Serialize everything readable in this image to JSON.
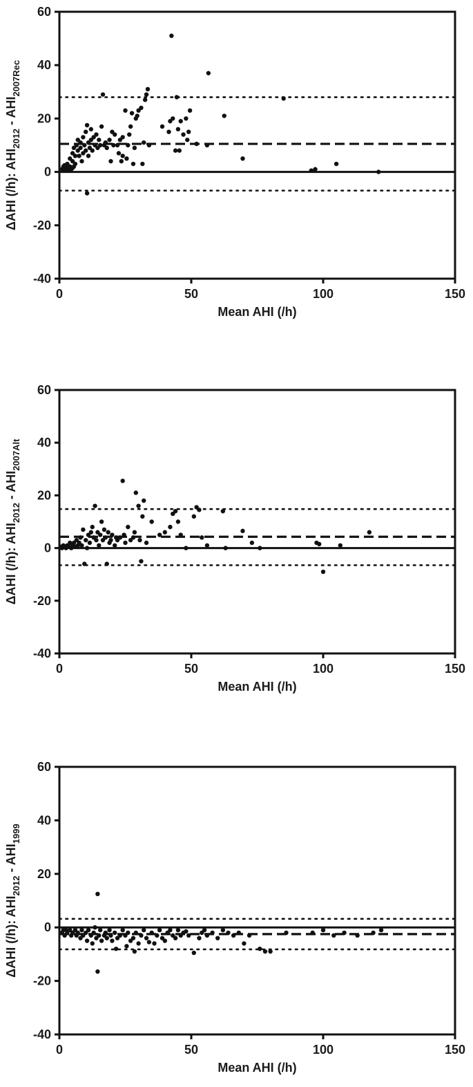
{
  "colors": {
    "ink": "#111111",
    "background": "#ffffff"
  },
  "chart_data": [
    {
      "type": "scatter",
      "title": "",
      "xlabel": "Mean AHI (/h)",
      "ylabel_parts": [
        {
          "text": "ΔAHI (/h): AHI"
        },
        {
          "text": "2012",
          "sub": true
        },
        {
          "text": " - AHI"
        },
        {
          "text": "2007Rec",
          "sub": true
        }
      ],
      "xlim": [
        0,
        150
      ],
      "ylim": [
        -40,
        60
      ],
      "xticks": [
        "0",
        "50",
        "100",
        "150"
      ],
      "yticks": [
        "-40",
        "-20",
        "0",
        "20",
        "40",
        "60"
      ],
      "grid": false,
      "reference_lines": [
        {
          "kind": "zero",
          "style": "solid",
          "y": 0
        },
        {
          "kind": "mean-bias",
          "style": "dashed",
          "y": 10.5
        },
        {
          "kind": "upper-limit",
          "style": "dotted",
          "y": 28
        },
        {
          "kind": "lower-limit",
          "style": "dotted",
          "y": -7
        }
      ],
      "points": [
        [
          1,
          1
        ],
        [
          1.5,
          2
        ],
        [
          2,
          1
        ],
        [
          2,
          2.5
        ],
        [
          2.5,
          0.5
        ],
        [
          3,
          1.5
        ],
        [
          3,
          3
        ],
        [
          3.5,
          2
        ],
        [
          4,
          0.5
        ],
        [
          4,
          2
        ],
        [
          4,
          5
        ],
        [
          4.5,
          1
        ],
        [
          5,
          1.5
        ],
        [
          5,
          4
        ],
        [
          5,
          7
        ],
        [
          5.5,
          2
        ],
        [
          5.5,
          9
        ],
        [
          6,
          3
        ],
        [
          6,
          6
        ],
        [
          6.5,
          10
        ],
        [
          7,
          8
        ],
        [
          7,
          12
        ],
        [
          7.5,
          6
        ],
        [
          8,
          9
        ],
        [
          8,
          11
        ],
        [
          8.5,
          4
        ],
        [
          9,
          7
        ],
        [
          9,
          13
        ],
        [
          9.5,
          10
        ],
        [
          10,
          15
        ],
        [
          10,
          8
        ],
        [
          10.5,
          -8
        ],
        [
          10.5,
          17.5
        ],
        [
          11,
          6
        ],
        [
          11,
          11
        ],
        [
          11.5,
          9
        ],
        [
          12,
          12
        ],
        [
          12,
          16
        ],
        [
          12.5,
          8
        ],
        [
          13,
          13
        ],
        [
          13.5,
          10
        ],
        [
          14,
          14
        ],
        [
          14.5,
          9
        ],
        [
          15,
          12
        ],
        [
          15.5,
          10
        ],
        [
          16,
          17
        ],
        [
          16.5,
          29
        ],
        [
          17,
          10
        ],
        [
          17.5,
          11
        ],
        [
          18,
          9
        ],
        [
          19,
          12
        ],
        [
          19.5,
          4
        ],
        [
          20,
          15
        ],
        [
          20.5,
          10
        ],
        [
          21,
          14
        ],
        [
          22,
          10
        ],
        [
          22.5,
          7
        ],
        [
          23,
          12
        ],
        [
          23.5,
          4
        ],
        [
          24,
          6
        ],
        [
          24,
          13
        ],
        [
          25,
          23
        ],
        [
          25.5,
          5
        ],
        [
          26,
          10
        ],
        [
          26.5,
          14
        ],
        [
          27,
          17
        ],
        [
          27.5,
          22
        ],
        [
          28,
          3
        ],
        [
          28.5,
          9
        ],
        [
          29,
          20
        ],
        [
          29.5,
          21
        ],
        [
          30,
          23
        ],
        [
          31,
          24
        ],
        [
          31.5,
          3
        ],
        [
          32,
          11
        ],
        [
          32.5,
          27
        ],
        [
          33,
          29
        ],
        [
          33.5,
          31
        ],
        [
          34,
          10
        ],
        [
          39,
          17
        ],
        [
          41.5,
          15
        ],
        [
          42,
          19
        ],
        [
          42.5,
          51
        ],
        [
          43,
          20
        ],
        [
          44,
          8
        ],
        [
          44.5,
          28
        ],
        [
          45,
          16
        ],
        [
          45.5,
          8
        ],
        [
          46,
          19
        ],
        [
          47,
          14
        ],
        [
          48,
          20
        ],
        [
          48.5,
          12
        ],
        [
          49,
          15
        ],
        [
          49.5,
          23
        ],
        [
          52,
          10.5
        ],
        [
          56,
          10
        ],
        [
          56.5,
          37
        ],
        [
          62.5,
          21
        ],
        [
          69.5,
          5
        ],
        [
          85,
          27.5
        ],
        [
          95.5,
          0.5
        ],
        [
          97,
          1
        ],
        [
          105,
          3
        ],
        [
          121,
          0
        ]
      ]
    },
    {
      "type": "scatter",
      "title": "",
      "xlabel": "Mean AHI (/h)",
      "ylabel_parts": [
        {
          "text": "ΔAHI (/h): AHI"
        },
        {
          "text": "2012",
          "sub": true
        },
        {
          "text": " - AHI"
        },
        {
          "text": "2007Alt",
          "sub": true
        }
      ],
      "xlim": [
        0,
        150
      ],
      "ylim": [
        -40,
        60
      ],
      "xticks": [
        "0",
        "50",
        "100",
        "150"
      ],
      "yticks": [
        "-40",
        "-20",
        "0",
        "20",
        "40",
        "60"
      ],
      "grid": false,
      "reference_lines": [
        {
          "kind": "zero",
          "style": "solid",
          "y": 0
        },
        {
          "kind": "mean-bias",
          "style": "dashed",
          "y": 4.3
        },
        {
          "kind": "upper-limit",
          "style": "dotted",
          "y": 14.8
        },
        {
          "kind": "lower-limit",
          "style": "dotted",
          "y": -6.5
        }
      ],
      "points": [
        [
          0.5,
          0.5
        ],
        [
          1,
          0
        ],
        [
          1.5,
          1
        ],
        [
          2,
          0.5
        ],
        [
          2.5,
          0
        ],
        [
          3,
          1
        ],
        [
          3.5,
          0.5
        ],
        [
          4,
          2
        ],
        [
          4.5,
          0
        ],
        [
          5,
          1
        ],
        [
          5.5,
          2
        ],
        [
          6,
          0.5
        ],
        [
          6.5,
          3
        ],
        [
          7,
          1
        ],
        [
          7.5,
          2
        ],
        [
          8,
          4
        ],
        [
          8.5,
          1
        ],
        [
          9,
          7
        ],
        [
          9.5,
          -6
        ],
        [
          10,
          3
        ],
        [
          10.5,
          0
        ],
        [
          11,
          5
        ],
        [
          11.5,
          2
        ],
        [
          12,
          6
        ],
        [
          12.5,
          8
        ],
        [
          13,
          4
        ],
        [
          13.5,
          16
        ],
        [
          14,
          3
        ],
        [
          14.5,
          6
        ],
        [
          15,
          1
        ],
        [
          15.5,
          5
        ],
        [
          16,
          10
        ],
        [
          16.5,
          3
        ],
        [
          17,
          7
        ],
        [
          17.5,
          4
        ],
        [
          18,
          -6
        ],
        [
          18.5,
          6
        ],
        [
          19,
          2
        ],
        [
          19.5,
          3
        ],
        [
          20,
          5
        ],
        [
          21,
          1
        ],
        [
          21.5,
          4
        ],
        [
          22,
          3
        ],
        [
          23,
          4
        ],
        [
          24,
          25.5
        ],
        [
          24.5,
          5
        ],
        [
          25,
          2
        ],
        [
          26,
          8
        ],
        [
          27,
          3
        ],
        [
          28,
          4
        ],
        [
          28.5,
          6
        ],
        [
          29,
          21
        ],
        [
          30,
          16
        ],
        [
          30.5,
          3
        ],
        [
          31,
          -5
        ],
        [
          31.5,
          12
        ],
        [
          32,
          18
        ],
        [
          33,
          2
        ],
        [
          35,
          10
        ],
        [
          38,
          5
        ],
        [
          40,
          6
        ],
        [
          42,
          8
        ],
        [
          43,
          13
        ],
        [
          44,
          14
        ],
        [
          45,
          10
        ],
        [
          46,
          5
        ],
        [
          48,
          0
        ],
        [
          51,
          12
        ],
        [
          52,
          15.5
        ],
        [
          53,
          14.5
        ],
        [
          54,
          4
        ],
        [
          56,
          1
        ],
        [
          62,
          14
        ],
        [
          63,
          0
        ],
        [
          69.5,
          6.5
        ],
        [
          73,
          2
        ],
        [
          76,
          0
        ],
        [
          97.5,
          2
        ],
        [
          98.5,
          1.5
        ],
        [
          100,
          -9
        ],
        [
          106.5,
          1
        ],
        [
          117.5,
          6
        ]
      ]
    },
    {
      "type": "scatter",
      "title": "",
      "xlabel": "Mean AHI (/h)",
      "ylabel_parts": [
        {
          "text": "ΔAHI (/h): AHI"
        },
        {
          "text": "2012",
          "sub": true
        },
        {
          "text": " - AHI"
        },
        {
          "text": "1999",
          "sub": true
        }
      ],
      "xlim": [
        0,
        150
      ],
      "ylim": [
        -40,
        60
      ],
      "xticks": [
        "0",
        "50",
        "100",
        "150"
      ],
      "yticks": [
        "-40",
        "-20",
        "0",
        "20",
        "40",
        "60"
      ],
      "grid": false,
      "reference_lines": [
        {
          "kind": "zero",
          "style": "solid",
          "y": 0
        },
        {
          "kind": "mean-bias",
          "style": "dashed",
          "y": -2.5
        },
        {
          "kind": "upper-limit",
          "style": "dotted",
          "y": 3.2
        },
        {
          "kind": "lower-limit",
          "style": "dotted",
          "y": -8.2
        }
      ],
      "points": [
        [
          1,
          -2
        ],
        [
          1.5,
          -1
        ],
        [
          2,
          -3
        ],
        [
          2.5,
          -1
        ],
        [
          3,
          -2
        ],
        [
          4,
          -1
        ],
        [
          4.5,
          -3
        ],
        [
          5,
          -2
        ],
        [
          6,
          -1
        ],
        [
          6.5,
          -3
        ],
        [
          7,
          -2
        ],
        [
          8,
          -4
        ],
        [
          8.5,
          -1
        ],
        [
          9,
          -3
        ],
        [
          10,
          -2
        ],
        [
          10.5,
          -5
        ],
        [
          11,
          -1
        ],
        [
          12,
          -3
        ],
        [
          12.5,
          -6
        ],
        [
          13,
          -2
        ],
        [
          13.5,
          0
        ],
        [
          14,
          -4
        ],
        [
          14.5,
          -16.5
        ],
        [
          14.5,
          12.5
        ],
        [
          15,
          -3
        ],
        [
          15.5,
          -1
        ],
        [
          16,
          -5
        ],
        [
          17,
          -3
        ],
        [
          17.5,
          -2
        ],
        [
          18,
          -4
        ],
        [
          19,
          -1
        ],
        [
          19.5,
          -3
        ],
        [
          20,
          -5
        ],
        [
          21,
          -2
        ],
        [
          21.5,
          -8
        ],
        [
          22,
          -4
        ],
        [
          23,
          -3
        ],
        [
          24,
          -1
        ],
        [
          25,
          -3
        ],
        [
          25.5,
          -7
        ],
        [
          26,
          -2
        ],
        [
          27,
          -5
        ],
        [
          28,
          -4
        ],
        [
          28.5,
          -9
        ],
        [
          29,
          -2
        ],
        [
          30,
          -6
        ],
        [
          31,
          -3
        ],
        [
          32,
          -1
        ],
        [
          33,
          -4
        ],
        [
          34,
          -5.5
        ],
        [
          35,
          -2
        ],
        [
          36,
          -6
        ],
        [
          37,
          -3
        ],
        [
          38,
          -1
        ],
        [
          39,
          -4
        ],
        [
          40,
          -5
        ],
        [
          41,
          -2
        ],
        [
          42,
          -1
        ],
        [
          43,
          -3
        ],
        [
          44,
          -4
        ],
        [
          45,
          -1
        ],
        [
          46,
          -3
        ],
        [
          47,
          -2
        ],
        [
          48,
          -1.5
        ],
        [
          49,
          -3
        ],
        [
          51,
          -9.5
        ],
        [
          53,
          -4
        ],
        [
          54,
          -2
        ],
        [
          55,
          -1
        ],
        [
          56,
          -3
        ],
        [
          58,
          -2
        ],
        [
          60,
          -4
        ],
        [
          62,
          -1
        ],
        [
          64,
          -2
        ],
        [
          66,
          -3
        ],
        [
          68,
          -2
        ],
        [
          70,
          -6
        ],
        [
          72,
          -3
        ],
        [
          76,
          -8
        ],
        [
          78,
          -9
        ],
        [
          80,
          -9
        ],
        [
          86,
          -2
        ],
        [
          96,
          -2
        ],
        [
          100,
          -1
        ],
        [
          104,
          -3
        ],
        [
          108,
          -2
        ],
        [
          113,
          -3
        ],
        [
          119,
          -2
        ],
        [
          122,
          -1
        ]
      ]
    }
  ]
}
